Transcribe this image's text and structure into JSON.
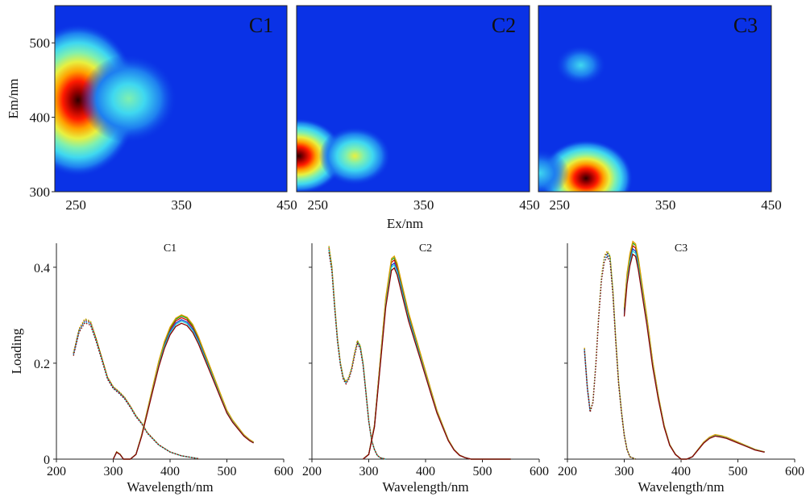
{
  "colors": {
    "contour_background": "#0a32e6",
    "ramp": [
      "#0a32e6",
      "#1e7ff0",
      "#3fd8f0",
      "#7ff0b0",
      "#e8f040",
      "#ffa000",
      "#ff1a00",
      "#a00000",
      "#300000"
    ],
    "lines": [
      "#d40000",
      "#1a3cd4",
      "#18a018",
      "#e0a000",
      "#30d0d0",
      "#8a0000"
    ]
  },
  "chart_data": [
    {
      "type": "heatmap",
      "panel_label": "C1",
      "ylabel": "Em/nm",
      "xlim": [
        230,
        450
      ],
      "ylim": [
        300,
        550
      ],
      "xticks": [
        "250",
        "350",
        "450"
      ],
      "yticks": [
        "300",
        "400",
        "500"
      ],
      "peaks": [
        {
          "ex": 252,
          "em": 423,
          "intensity": 1.0
        },
        {
          "ex": 300,
          "em": 425,
          "intensity": 0.35
        }
      ]
    },
    {
      "type": "heatmap",
      "panel_label": "C2",
      "xlabel": "Ex/nm",
      "xlim": [
        230,
        450
      ],
      "ylim": [
        300,
        550
      ],
      "xticks": [
        "250",
        "350",
        "450"
      ],
      "peaks": [
        {
          "ex": 232,
          "em": 348,
          "intensity": 0.95
        },
        {
          "ex": 285,
          "em": 348,
          "intensity": 0.55
        }
      ]
    },
    {
      "type": "heatmap",
      "panel_label": "C3",
      "xlim": [
        230,
        450
      ],
      "ylim": [
        300,
        550
      ],
      "xticks": [
        "250",
        "350",
        "450"
      ],
      "peaks": [
        {
          "ex": 275,
          "em": 318,
          "intensity": 1.0
        },
        {
          "ex": 231,
          "em": 325,
          "intensity": 0.3
        },
        {
          "ex": 270,
          "em": 470,
          "intensity": 0.12
        }
      ]
    },
    {
      "type": "line",
      "title": "C1",
      "ylabel": "Loading",
      "xlabel": "Wavelength/nm",
      "xlim": [
        200,
        600
      ],
      "ylim": [
        0,
        0.45
      ],
      "xticks": [
        "200",
        "300",
        "400",
        "500",
        "600"
      ],
      "yticks": [
        "0",
        "0.2",
        "0.4"
      ],
      "excitation": {
        "x": [
          230,
          240,
          250,
          260,
          270,
          280,
          290,
          300,
          310,
          320,
          330,
          340,
          350,
          360,
          380,
          400,
          420,
          440,
          450
        ],
        "y": [
          0.22,
          0.27,
          0.29,
          0.285,
          0.25,
          0.21,
          0.17,
          0.15,
          0.14,
          0.128,
          0.11,
          0.09,
          0.075,
          0.055,
          0.03,
          0.015,
          0.007,
          0.003,
          0.001
        ]
      },
      "emission": {
        "x": [
          300,
          306,
          312,
          318,
          330,
          340,
          350,
          360,
          370,
          380,
          390,
          400,
          410,
          420,
          430,
          440,
          450,
          460,
          470,
          480,
          490,
          500,
          510,
          520,
          530,
          540,
          547
        ],
        "y": [
          0.0,
          0.015,
          0.01,
          0.0,
          0.0,
          0.01,
          0.05,
          0.1,
          0.15,
          0.2,
          0.24,
          0.27,
          0.288,
          0.295,
          0.29,
          0.275,
          0.25,
          0.22,
          0.19,
          0.16,
          0.13,
          0.1,
          0.08,
          0.065,
          0.05,
          0.04,
          0.035
        ]
      }
    },
    {
      "type": "line",
      "title": "C2",
      "xlabel": "Wavelength/nm",
      "xlim": [
        200,
        600
      ],
      "ylim": [
        0,
        0.45
      ],
      "xticks": [
        "200",
        "300",
        "400",
        "500",
        "600"
      ],
      "excitation": {
        "x": [
          230,
          235,
          240,
          245,
          250,
          255,
          260,
          265,
          270,
          275,
          280,
          285,
          290,
          295,
          300,
          305,
          310,
          315,
          320,
          330
        ],
        "y": [
          0.44,
          0.4,
          0.32,
          0.25,
          0.2,
          0.17,
          0.16,
          0.17,
          0.19,
          0.22,
          0.245,
          0.235,
          0.2,
          0.14,
          0.08,
          0.04,
          0.02,
          0.008,
          0.003,
          0.0
        ]
      },
      "emission": {
        "x": [
          290,
          300,
          310,
          320,
          330,
          340,
          345,
          350,
          360,
          370,
          380,
          390,
          400,
          410,
          420,
          430,
          440,
          450,
          460,
          470,
          480,
          500,
          550
        ],
        "y": [
          0.0,
          0.01,
          0.07,
          0.2,
          0.33,
          0.41,
          0.415,
          0.4,
          0.35,
          0.3,
          0.26,
          0.22,
          0.18,
          0.14,
          0.1,
          0.07,
          0.04,
          0.02,
          0.008,
          0.003,
          0.0,
          0.0,
          0.0
        ]
      }
    },
    {
      "type": "line",
      "title": "C3",
      "xlabel": "Wavelength/nm",
      "xlim": [
        200,
        600
      ],
      "ylim": [
        0,
        0.45
      ],
      "xticks": [
        "200",
        "300",
        "400",
        "500",
        "600"
      ],
      "excitation": {
        "x": [
          230,
          235,
          240,
          245,
          250,
          255,
          260,
          265,
          270,
          275,
          280,
          285,
          290,
          295,
          300,
          305,
          310,
          320
        ],
        "y": [
          0.23,
          0.15,
          0.1,
          0.12,
          0.2,
          0.3,
          0.38,
          0.42,
          0.43,
          0.42,
          0.35,
          0.25,
          0.16,
          0.1,
          0.05,
          0.02,
          0.005,
          0.0
        ]
      },
      "emission": {
        "x": [
          300,
          305,
          310,
          315,
          320,
          325,
          330,
          340,
          350,
          360,
          370,
          380,
          390,
          400,
          410,
          420,
          430,
          440,
          450,
          460,
          470,
          480,
          490,
          500,
          510,
          520,
          530,
          540,
          547
        ],
        "y": [
          0.31,
          0.38,
          0.42,
          0.445,
          0.44,
          0.41,
          0.37,
          0.29,
          0.2,
          0.13,
          0.07,
          0.03,
          0.01,
          0.0,
          0.0,
          0.005,
          0.02,
          0.035,
          0.045,
          0.05,
          0.048,
          0.045,
          0.04,
          0.035,
          0.03,
          0.025,
          0.02,
          0.017,
          0.015
        ]
      }
    }
  ]
}
